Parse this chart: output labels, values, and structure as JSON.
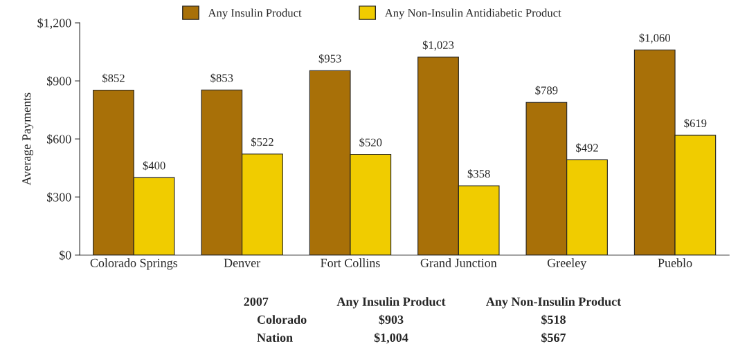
{
  "chart_data": {
    "type": "bar",
    "ylabel": "Average Payments",
    "categories": [
      "Colorado Springs",
      "Denver",
      "Fort Collins",
      "Grand Junction",
      "Greeley",
      "Pueblo"
    ],
    "series": [
      {
        "name": "Any Insulin Product",
        "color": "#a87008",
        "values": [
          852,
          853,
          953,
          1023,
          789,
          1060
        ],
        "value_labels": [
          "$852",
          "$853",
          "$953",
          "$1,023",
          "$789",
          "$1,060"
        ]
      },
      {
        "name": "Any Non-Insulin Antidiabetic Product",
        "color": "#f0cc00",
        "values": [
          400,
          522,
          520,
          358,
          492,
          619
        ],
        "value_labels": [
          "$400",
          "$522",
          "$520",
          "$358",
          "$492",
          "$619"
        ]
      }
    ],
    "ylim": [
      0,
      1200
    ],
    "yticks": [
      {
        "value": 0,
        "label": "$0"
      },
      {
        "value": 300,
        "label": "$300"
      },
      {
        "value": 600,
        "label": "$600"
      },
      {
        "value": 900,
        "label": "$900"
      },
      {
        "value": 1200,
        "label": "$1,200"
      }
    ],
    "grid": false,
    "legend": "top",
    "annotations": [
      "2007",
      "Any Insulin Product",
      "Any Non-Insulin Product",
      "Colorado",
      "$903",
      "$518",
      "Nation",
      "$1,004",
      "$567"
    ]
  }
}
